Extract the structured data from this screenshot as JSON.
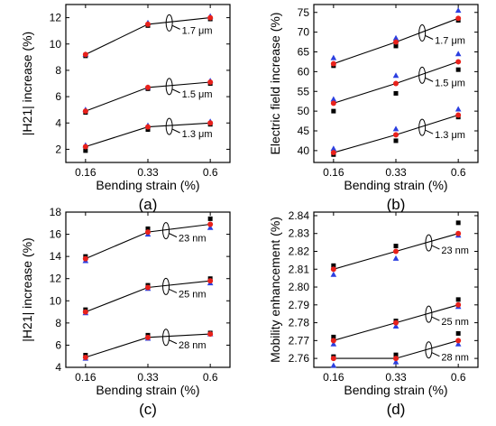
{
  "chart_data": [
    {
      "type": "scatter",
      "panel_label": "(a)",
      "xlabel": "Bending strain (%)",
      "ylabel": "|H21| increase (%)",
      "categories": [
        "0.16",
        "0.33",
        "0.6"
      ],
      "ylim": [
        1,
        13
      ],
      "yticks": [
        2,
        4,
        6,
        8,
        10,
        12
      ],
      "series": [
        {
          "name": "1.7 μm",
          "red": [
            9.2,
            11.5,
            12.0
          ],
          "blue": [
            9.2,
            11.6,
            12.1
          ],
          "black": [
            9.1,
            11.4,
            11.9
          ]
        },
        {
          "name": "1.5 μm",
          "red": [
            4.9,
            6.7,
            7.1
          ],
          "blue": [
            5.0,
            6.7,
            7.2
          ],
          "black": [
            4.8,
            6.6,
            7.0
          ]
        },
        {
          "name": "1.3 μm",
          "red": [
            2.2,
            3.7,
            4.0
          ],
          "blue": [
            2.3,
            3.8,
            4.1
          ],
          "black": [
            1.9,
            3.5,
            3.9
          ]
        }
      ]
    },
    {
      "type": "scatter",
      "panel_label": "(b)",
      "xlabel": "Bending strain (%)",
      "ylabel": "Electric field increase (%)",
      "categories": [
        "0.16",
        "0.33",
        "0.6"
      ],
      "ylim": [
        37,
        77
      ],
      "yticks": [
        40,
        45,
        50,
        55,
        60,
        65,
        70,
        75
      ],
      "series": [
        {
          "name": "1.7 μm",
          "red": [
            62,
            67.5,
            73.5
          ],
          "blue": [
            63.5,
            68.5,
            75.5
          ],
          "black": [
            61.5,
            66.5,
            73
          ]
        },
        {
          "name": "1.5 μm",
          "red": [
            52,
            57,
            62.5
          ],
          "blue": [
            53,
            59,
            64.5
          ],
          "black": [
            50,
            54.5,
            60.5
          ]
        },
        {
          "name": "1.3 μm",
          "red": [
            39.5,
            44,
            49
          ],
          "blue": [
            40.5,
            45.5,
            50.5
          ],
          "black": [
            39,
            42.5,
            48.5
          ]
        }
      ]
    },
    {
      "type": "scatter",
      "panel_label": "(c)",
      "xlabel": "Bending strain (%)",
      "ylabel": "|H21| increase (%)",
      "categories": [
        "0.16",
        "0.33",
        "0.6"
      ],
      "ylim": [
        4,
        18
      ],
      "yticks": [
        4,
        6,
        8,
        10,
        12,
        14,
        16,
        18
      ],
      "series": [
        {
          "name": "23 nm",
          "red": [
            13.8,
            16.2,
            16.9
          ],
          "blue": [
            13.6,
            16.0,
            16.6
          ],
          "black": [
            14.0,
            16.5,
            17.4
          ]
        },
        {
          "name": "25 nm",
          "red": [
            9.0,
            11.2,
            11.8
          ],
          "blue": [
            8.9,
            11.1,
            11.6
          ],
          "black": [
            9.2,
            11.4,
            12.0
          ]
        },
        {
          "name": "28 nm",
          "red": [
            4.9,
            6.7,
            7.0
          ],
          "blue": [
            4.8,
            6.6,
            7.0
          ],
          "black": [
            5.1,
            6.9,
            7.1
          ]
        }
      ]
    },
    {
      "type": "scatter",
      "panel_label": "(d)",
      "xlabel": "Bending strain (%)",
      "ylabel": "Mobility enhancement (%)",
      "categories": [
        "0.16",
        "0.33",
        "0.6"
      ],
      "ylim": [
        2.755,
        2.842
      ],
      "yticks": [
        2.76,
        2.77,
        2.78,
        2.79,
        2.8,
        2.81,
        2.82,
        2.83,
        2.84
      ],
      "yticklabels": [
        "2.76",
        "2.77",
        "2.78",
        "2.79",
        "2.80",
        "2.81",
        "2.82",
        "2.83",
        "2.84"
      ],
      "series": [
        {
          "name": "23 nm",
          "red": [
            2.81,
            2.82,
            2.83
          ],
          "blue": [
            2.807,
            2.816,
            2.829
          ],
          "black": [
            2.812,
            2.823,
            2.836
          ]
        },
        {
          "name": "25 nm",
          "red": [
            2.77,
            2.78,
            2.79
          ],
          "blue": [
            2.768,
            2.778,
            2.789
          ],
          "black": [
            2.772,
            2.781,
            2.793
          ]
        },
        {
          "name": "28 nm",
          "red": [
            2.76,
            2.76,
            2.77
          ],
          "blue": [
            2.756,
            2.758,
            2.768
          ],
          "black": [
            2.761,
            2.762,
            2.774
          ]
        }
      ]
    }
  ],
  "colors": {
    "fit_line": "#000000",
    "red_marker": "#e8211b",
    "blue_marker": "#2b3fe0",
    "black_marker": "#000000"
  }
}
